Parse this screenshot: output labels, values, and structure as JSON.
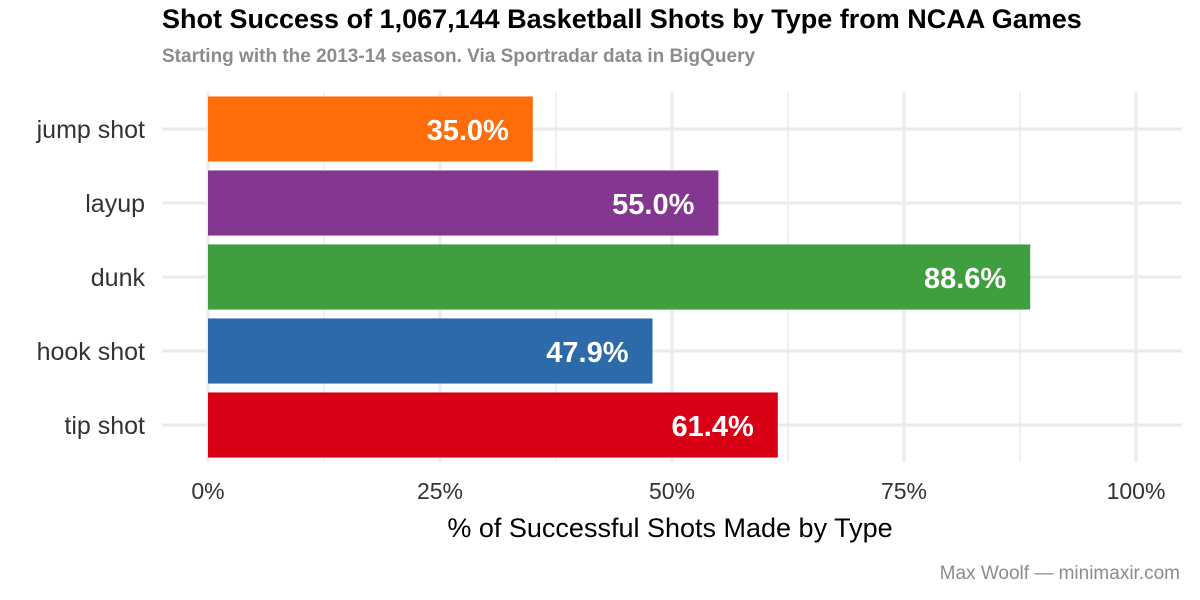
{
  "chart_data": {
    "type": "bar",
    "orientation": "horizontal",
    "title": "Shot Success of 1,067,144 Basketball Shots by Type from NCAA Games",
    "subtitle": "Starting with the 2013-14 season. Via Sportradar data in BigQuery",
    "xlabel": "% of Successful Shots Made by Type",
    "ylabel": "",
    "caption": "Max Woolf — minimaxir.com",
    "xlim": [
      0,
      100
    ],
    "x_ticks": [
      0,
      25,
      50,
      75,
      100
    ],
    "x_tick_labels": [
      "0%",
      "25%",
      "50%",
      "75%",
      "100%"
    ],
    "grid": true,
    "legend": "none",
    "categories": [
      "jump shot",
      "layup",
      "dunk",
      "hook shot",
      "tip shot"
    ],
    "values": [
      35.0,
      55.0,
      88.6,
      47.9,
      61.4
    ],
    "data_labels": [
      "35.0%",
      "55.0%",
      "88.6%",
      "47.9%",
      "61.4%"
    ],
    "colors": [
      "#ff6c0a",
      "#833790",
      "#3f9f3e",
      "#2d6aa9",
      "#d90016"
    ]
  },
  "colors": {
    "grid": "#ebebeb",
    "title": "#000000",
    "subtitle": "#8c8c8c",
    "caption": "#8c8c8c"
  }
}
